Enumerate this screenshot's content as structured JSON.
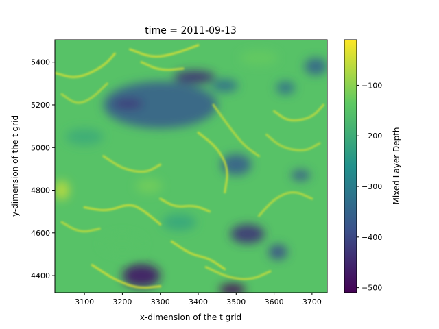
{
  "chart_data": {
    "type": "heatmap",
    "title": "time = 2011-09-13",
    "xlabel": "x-dimension of the t grid",
    "ylabel": "y-dimension of the t grid",
    "colorbar_label": "Mixed Layer Depth",
    "colormap": "viridis",
    "colormap_stops": [
      "#440154",
      "#3b528b",
      "#21918c",
      "#5ec962",
      "#fde725"
    ],
    "xlim": [
      3022,
      3740
    ],
    "ylim": [
      4320,
      5505
    ],
    "xticks": [
      3100,
      3200,
      3300,
      3400,
      3500,
      3600,
      3700
    ],
    "yticks": [
      4400,
      4600,
      4800,
      5000,
      5200,
      5400
    ],
    "value_range": [
      -510,
      -10
    ],
    "colorbar_ticks": [
      -100,
      -200,
      -300,
      -400,
      -500
    ],
    "features": [
      {
        "kind": "shallow-region",
        "x": 3300,
        "y": 5200,
        "rx": 150,
        "ry": 110,
        "value": -360
      },
      {
        "kind": "eddy",
        "x": 3390,
        "y": 5330,
        "rx": 55,
        "ry": 30,
        "value": -440
      },
      {
        "kind": "eddy",
        "x": 3215,
        "y": 5205,
        "rx": 40,
        "ry": 25,
        "value": -420
      },
      {
        "kind": "eddy",
        "x": 3250,
        "y": 4400,
        "rx": 50,
        "ry": 55,
        "value": -470
      },
      {
        "kind": "eddy",
        "x": 3530,
        "y": 4595,
        "rx": 45,
        "ry": 45,
        "value": -430
      },
      {
        "kind": "eddy",
        "x": 3490,
        "y": 4335,
        "rx": 35,
        "ry": 25,
        "value": -500
      },
      {
        "kind": "eddy",
        "x": 3500,
        "y": 4920,
        "rx": 40,
        "ry": 50,
        "value": -360
      },
      {
        "kind": "eddy",
        "x": 3610,
        "y": 4510,
        "rx": 25,
        "ry": 35,
        "value": -390
      },
      {
        "kind": "eddy",
        "x": 3670,
        "y": 4870,
        "rx": 25,
        "ry": 25,
        "value": -370
      },
      {
        "kind": "eddy",
        "x": 3470,
        "y": 5290,
        "rx": 35,
        "ry": 30,
        "value": -330
      },
      {
        "kind": "eddy",
        "x": 3710,
        "y": 5380,
        "rx": 30,
        "ry": 40,
        "value": -350
      },
      {
        "kind": "eddy",
        "x": 3630,
        "y": 5280,
        "rx": 25,
        "ry": 30,
        "value": -330
      },
      {
        "kind": "eddy",
        "x": 3040,
        "y": 4800,
        "rx": 20,
        "ry": 45,
        "value": -60
      },
      {
        "kind": "eddy",
        "x": 3270,
        "y": 4820,
        "rx": 35,
        "ry": 35,
        "value": -120
      },
      {
        "kind": "eddy",
        "x": 3200,
        "y": 4550,
        "rx": 55,
        "ry": 45,
        "value": -150
      },
      {
        "kind": "eddy",
        "x": 3100,
        "y": 5050,
        "rx": 50,
        "ry": 40,
        "value": -200
      },
      {
        "kind": "eddy",
        "x": 3560,
        "y": 5420,
        "rx": 50,
        "ry": 35,
        "value": -130
      },
      {
        "kind": "eddy",
        "x": 3350,
        "y": 4650,
        "rx": 45,
        "ry": 40,
        "value": -210
      }
    ],
    "filaments": [
      {
        "points": [
          [
            3022,
            5350
          ],
          [
            3080,
            5320
          ],
          [
            3150,
            5380
          ],
          [
            3180,
            5440
          ]
        ],
        "value": -40
      },
      {
        "points": [
          [
            3220,
            5460
          ],
          [
            3280,
            5420
          ],
          [
            3340,
            5440
          ],
          [
            3400,
            5480
          ]
        ],
        "value": -35
      },
      {
        "points": [
          [
            3440,
            5200
          ],
          [
            3480,
            5100
          ],
          [
            3520,
            5010
          ],
          [
            3560,
            4960
          ]
        ],
        "value": -55
      },
      {
        "points": [
          [
            3400,
            5070
          ],
          [
            3450,
            5000
          ],
          [
            3480,
            4900
          ],
          [
            3470,
            4790
          ]
        ],
        "value": -45
      },
      {
        "points": [
          [
            3150,
            4960
          ],
          [
            3200,
            4900
          ],
          [
            3260,
            4880
          ],
          [
            3300,
            4920
          ]
        ],
        "value": -50
      },
      {
        "points": [
          [
            3100,
            4720
          ],
          [
            3160,
            4700
          ],
          [
            3220,
            4740
          ],
          [
            3260,
            4700
          ],
          [
            3300,
            4640
          ]
        ],
        "value": -40
      },
      {
        "points": [
          [
            3300,
            4760
          ],
          [
            3340,
            4720
          ],
          [
            3390,
            4730
          ],
          [
            3430,
            4700
          ]
        ],
        "value": -45
      },
      {
        "points": [
          [
            3330,
            4560
          ],
          [
            3380,
            4500
          ],
          [
            3430,
            4480
          ],
          [
            3470,
            4430
          ]
        ],
        "value": -40
      },
      {
        "points": [
          [
            3120,
            4450
          ],
          [
            3180,
            4380
          ],
          [
            3240,
            4340
          ],
          [
            3300,
            4350
          ]
        ],
        "value": -35
      },
      {
        "points": [
          [
            3560,
            4680
          ],
          [
            3600,
            4760
          ],
          [
            3650,
            4800
          ],
          [
            3700,
            4760
          ]
        ],
        "value": -55
      },
      {
        "points": [
          [
            3600,
            5170
          ],
          [
            3640,
            5120
          ],
          [
            3700,
            5140
          ],
          [
            3730,
            5200
          ]
        ],
        "value": -50
      },
      {
        "points": [
          [
            3040,
            5250
          ],
          [
            3080,
            5200
          ],
          [
            3120,
            5230
          ],
          [
            3160,
            5300
          ]
        ],
        "value": -60
      },
      {
        "points": [
          [
            3250,
            5400
          ],
          [
            3300,
            5360
          ],
          [
            3360,
            5370
          ]
        ],
        "value": -45
      },
      {
        "points": [
          [
            3580,
            5060
          ],
          [
            3620,
            5000
          ],
          [
            3680,
            4980
          ],
          [
            3720,
            5020
          ]
        ],
        "value": -60
      },
      {
        "points": [
          [
            3420,
            4440
          ],
          [
            3480,
            4390
          ],
          [
            3540,
            4380
          ],
          [
            3590,
            4420
          ]
        ],
        "value": -50
      },
      {
        "points": [
          [
            3040,
            4650
          ],
          [
            3090,
            4600
          ],
          [
            3140,
            4620
          ]
        ],
        "value": -55
      }
    ]
  }
}
